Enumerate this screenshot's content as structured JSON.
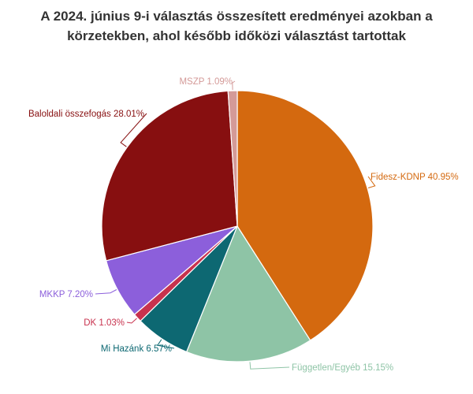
{
  "chart_data": {
    "type": "pie",
    "title_lines": [
      "A 2024. június 9-i választás összesített eredményei azokban a",
      "körzetekben, ahol később időközi választást tartottak"
    ],
    "slices": [
      {
        "name": "Fidesz-KDNP",
        "value": 40.95,
        "label": "Fidesz-KDNP 40.95%",
        "color": "#d4690f"
      },
      {
        "name": "Független/Egyéb",
        "value": 15.15,
        "label": "Független/Egyéb 15.15%",
        "color": "#8ec4a6"
      },
      {
        "name": "Mi Hazánk",
        "value": 6.57,
        "label": "Mi Hazánk 6.57%",
        "color": "#0d6872"
      },
      {
        "name": "DK",
        "value": 1.03,
        "label": "DK 1.03%",
        "color": "#c8324e"
      },
      {
        "name": "MKKP",
        "value": 7.2,
        "label": "MKKP 7.20%",
        "color": "#8c5fdb"
      },
      {
        "name": "Baloldali összefogás",
        "value": 28.01,
        "label": "Baloldali összefogás 28.01%",
        "color": "#870f10"
      },
      {
        "name": "MSZP",
        "value": 1.09,
        "label": "MSZP 1.09%",
        "color": "#d49a98"
      }
    ]
  }
}
